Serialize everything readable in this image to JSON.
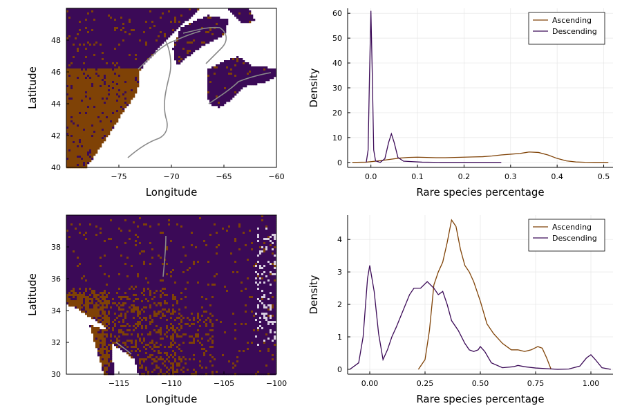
{
  "colors": {
    "ascending": "#7f4206",
    "descending": "#3b0a57",
    "map_land_dark": "#3b0a57",
    "map_land_rare": "#7f4206",
    "map_noise": "#d9cfe0",
    "border": "#8a8a8a"
  },
  "chart_data": [
    {
      "type": "heatmap",
      "subtype": "map",
      "region": "northeast",
      "xlabel": "Longitude",
      "ylabel": "Latitude",
      "xlim": [
        -80,
        -60
      ],
      "ylim": [
        40,
        50
      ],
      "xticks": [
        -75,
        -70,
        -65,
        -60
      ],
      "xtick_labels": [
        "−75",
        "−70",
        "−65",
        "−60"
      ],
      "yticks": [
        40,
        42,
        44,
        46,
        48
      ],
      "ytick_labels": [
        "40",
        "42",
        "44",
        "46",
        "48"
      ],
      "categories": [
        "Ascending",
        "Descending"
      ],
      "grid": true
    },
    {
      "type": "line",
      "xlabel": "Rare species percentage",
      "ylabel": "Density",
      "xlim": [
        -0.05,
        0.52
      ],
      "ylim": [
        -2,
        62
      ],
      "xticks": [
        0.0,
        0.1,
        0.2,
        0.3,
        0.4,
        0.5
      ],
      "xtick_labels": [
        "0.0",
        "0.1",
        "0.2",
        "0.3",
        "0.4",
        "0.5"
      ],
      "yticks": [
        0,
        10,
        20,
        30,
        40,
        50,
        60
      ],
      "ytick_labels": [
        "0",
        "10",
        "20",
        "30",
        "40",
        "50",
        "60"
      ],
      "legend": "top-right",
      "grid": true,
      "series": [
        {
          "name": "Ascending",
          "x": [
            -0.04,
            -0.01,
            0.0,
            0.02,
            0.04,
            0.06,
            0.08,
            0.1,
            0.12,
            0.14,
            0.16,
            0.18,
            0.2,
            0.22,
            0.24,
            0.26,
            0.28,
            0.3,
            0.32,
            0.34,
            0.36,
            0.38,
            0.4,
            0.42,
            0.44,
            0.46,
            0.48,
            0.51
          ],
          "y": [
            0.0,
            0.1,
            0.3,
            0.7,
            1.2,
            1.7,
            2.0,
            2.1,
            2.0,
            1.9,
            1.9,
            2.0,
            2.1,
            2.2,
            2.3,
            2.6,
            3.0,
            3.3,
            3.6,
            4.2,
            4.0,
            3.0,
            1.6,
            0.6,
            0.2,
            0.05,
            0.0,
            0.0
          ]
        },
        {
          "name": "Descending",
          "x": [
            -0.01,
            -0.006,
            -0.003,
            0.0,
            0.003,
            0.006,
            0.01,
            0.02,
            0.03,
            0.038,
            0.044,
            0.05,
            0.058,
            0.07,
            0.09,
            0.11,
            0.15,
            0.2,
            0.28
          ],
          "y": [
            0.0,
            5.0,
            35.0,
            61.0,
            35.0,
            5.0,
            0.6,
            0.0,
            1.5,
            8.0,
            11.5,
            8.0,
            2.0,
            0.5,
            0.3,
            0.1,
            0.0,
            0.0,
            0.0
          ]
        }
      ]
    },
    {
      "type": "heatmap",
      "subtype": "map",
      "region": "southwest",
      "xlabel": "Longitude",
      "ylabel": "Latitude",
      "xlim": [
        -120,
        -100
      ],
      "ylim": [
        30,
        40
      ],
      "xticks": [
        -115,
        -110,
        -105,
        -100
      ],
      "xtick_labels": [
        "−115",
        "−110",
        "−105",
        "−100"
      ],
      "yticks": [
        30,
        32,
        34,
        36,
        38
      ],
      "ytick_labels": [
        "30",
        "32",
        "34",
        "36",
        "38"
      ],
      "categories": [
        "Ascending",
        "Descending"
      ],
      "grid": true
    },
    {
      "type": "line",
      "xlabel": "Rare species percentage",
      "ylabel": "Density",
      "xlim": [
        -0.1,
        1.1
      ],
      "ylim": [
        -0.15,
        4.75
      ],
      "xticks": [
        0.0,
        0.25,
        0.5,
        0.75,
        1.0
      ],
      "xtick_labels": [
        "0.00",
        "0.25",
        "0.50",
        "0.75",
        "1.00"
      ],
      "yticks": [
        0,
        1,
        2,
        3,
        4
      ],
      "ytick_labels": [
        "0",
        "1",
        "2",
        "3",
        "4"
      ],
      "legend": "top-right",
      "grid": true,
      "series": [
        {
          "name": "Ascending",
          "x": [
            0.22,
            0.25,
            0.27,
            0.29,
            0.31,
            0.33,
            0.35,
            0.37,
            0.39,
            0.41,
            0.43,
            0.45,
            0.47,
            0.5,
            0.53,
            0.56,
            0.6,
            0.64,
            0.67,
            0.7,
            0.73,
            0.76,
            0.78,
            0.8,
            0.82
          ],
          "y": [
            0.0,
            0.3,
            1.2,
            2.6,
            3.0,
            3.3,
            3.9,
            4.6,
            4.4,
            3.7,
            3.2,
            3.0,
            2.7,
            2.1,
            1.4,
            1.1,
            0.8,
            0.6,
            0.6,
            0.55,
            0.6,
            0.7,
            0.65,
            0.35,
            0.0
          ]
        },
        {
          "name": "Descending",
          "x": [
            -0.09,
            -0.05,
            -0.03,
            -0.01,
            0.0,
            0.02,
            0.04,
            0.06,
            0.08,
            0.1,
            0.12,
            0.15,
            0.18,
            0.2,
            0.23,
            0.26,
            0.29,
            0.31,
            0.33,
            0.35,
            0.37,
            0.4,
            0.43,
            0.45,
            0.47,
            0.49,
            0.5,
            0.52,
            0.55,
            0.6,
            0.65,
            0.67,
            0.7,
            0.75,
            0.8,
            0.85,
            0.9,
            0.95,
            0.98,
            1.0,
            1.02,
            1.05,
            1.09
          ],
          "y": [
            0.0,
            0.2,
            1.0,
            2.8,
            3.2,
            2.4,
            1.1,
            0.3,
            0.6,
            1.0,
            1.3,
            1.8,
            2.3,
            2.5,
            2.5,
            2.7,
            2.5,
            2.3,
            2.4,
            2.0,
            1.5,
            1.2,
            0.8,
            0.6,
            0.55,
            0.6,
            0.7,
            0.55,
            0.2,
            0.05,
            0.08,
            0.12,
            0.08,
            0.04,
            0.02,
            0.0,
            0.01,
            0.1,
            0.35,
            0.45,
            0.3,
            0.05,
            0.0
          ]
        }
      ]
    }
  ]
}
